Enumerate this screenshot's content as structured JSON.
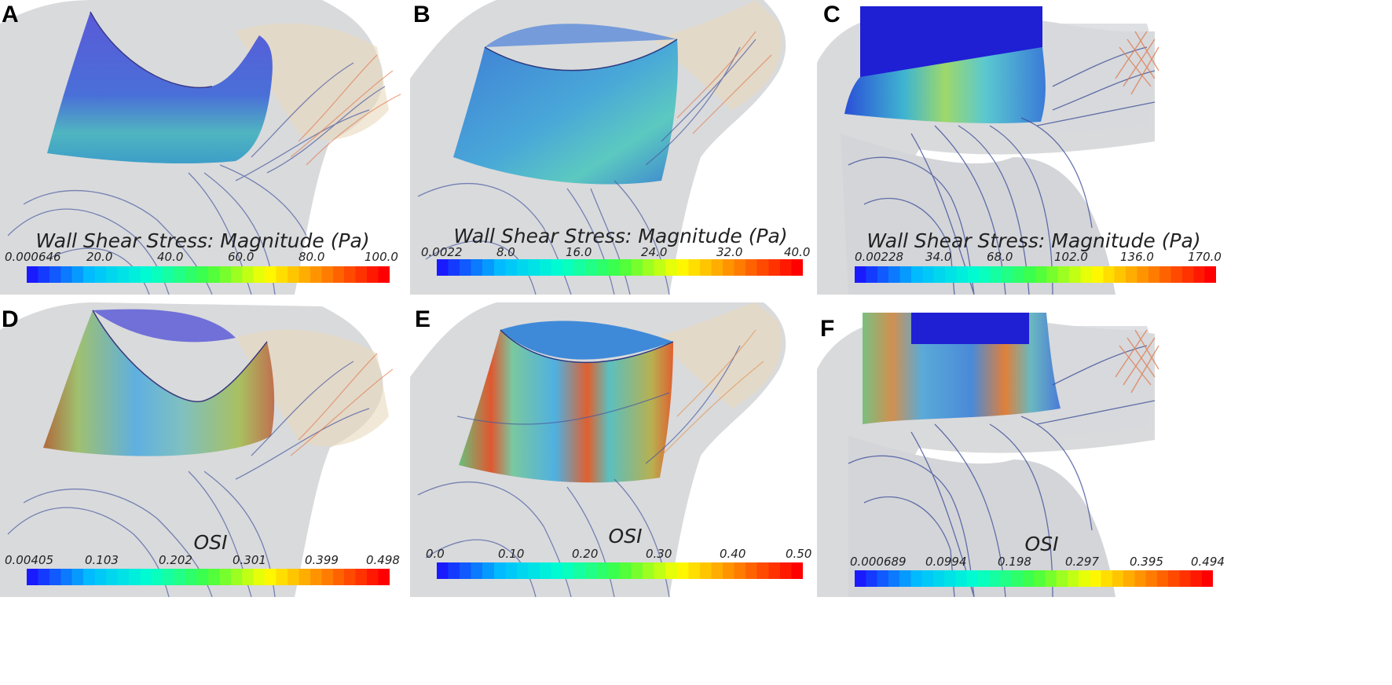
{
  "panels": [
    {
      "label": "A",
      "colorbar": {
        "title": "Wall Shear Stress: Magnitude (Pa)",
        "ticks": [
          "0.000646",
          "20.0",
          "40.0",
          "60.0",
          "80.0",
          "100.0"
        ]
      }
    },
    {
      "label": "B",
      "colorbar": {
        "title": "Wall Shear Stress: Magnitude (Pa)",
        "ticks": [
          "0.0022",
          "8.0",
          "16.0",
          "24.0",
          "32.0",
          "40.0"
        ]
      }
    },
    {
      "label": "C",
      "colorbar": {
        "title": "Wall Shear Stress: Magnitude (Pa)",
        "ticks": [
          "0.00228",
          "34.0",
          "68.0",
          "102.0",
          "136.0",
          "170.0"
        ]
      }
    },
    {
      "label": "D",
      "colorbar": {
        "title": "OSI",
        "ticks": [
          "0.00405",
          "0.103",
          "0.202",
          "0.301",
          "0.399",
          "0.498"
        ]
      }
    },
    {
      "label": "E",
      "colorbar": {
        "title": "OSI",
        "ticks": [
          "0.0",
          "0.10",
          "0.20",
          "0.30",
          "0.40",
          "0.50"
        ]
      }
    },
    {
      "label": "F",
      "colorbar": {
        "title": "OSI",
        "ticks": [
          "0.000689",
          "0.0994",
          "0.198",
          "0.297",
          "0.395",
          "0.494"
        ]
      }
    }
  ],
  "colors": {
    "background": "#ffffff",
    "vessel": "#d9dadc",
    "streamline_low": "#3b4f9a",
    "streamline_high": "#e8593a",
    "colormap": [
      "#1a1aff",
      "#00bfff",
      "#00ffd0",
      "#40ff40",
      "#ffff00",
      "#ff8000",
      "#ff0000"
    ]
  }
}
